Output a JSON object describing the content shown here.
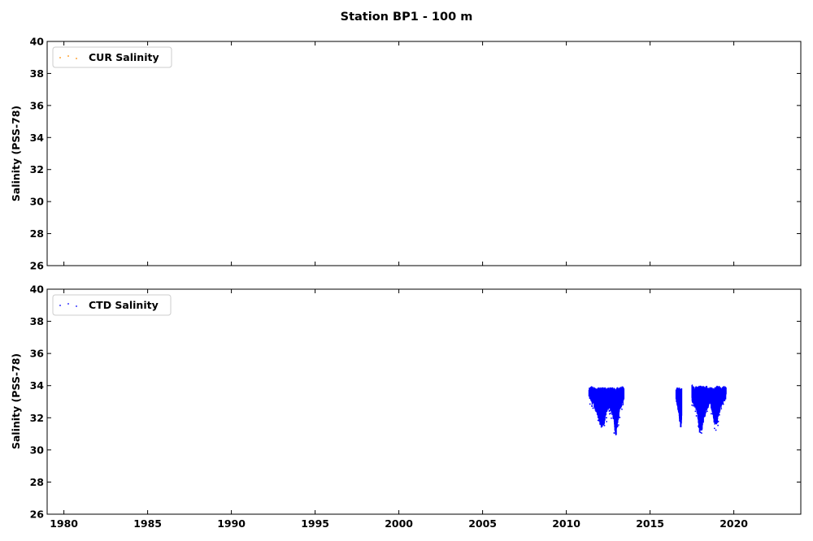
{
  "chart_data": {
    "type": "scatter",
    "title": "Station BP1 - 100 m",
    "xlim": [
      1979,
      2024
    ],
    "xticks": [
      1980,
      1985,
      1990,
      1995,
      2000,
      2005,
      2010,
      2015,
      2020
    ],
    "panels": [
      {
        "ylabel": "Salinity (PSS-78)",
        "ylim": [
          26,
          40
        ],
        "yticks": [
          26,
          28,
          30,
          32,
          34,
          36,
          38,
          40
        ],
        "legend": {
          "label": "CUR Salinity",
          "position": "upper left"
        },
        "color": "#ff8c00",
        "series": [
          {
            "name": "CUR Salinity",
            "points": []
          }
        ]
      },
      {
        "ylabel": "Salinity (PSS-78)",
        "ylim": [
          26,
          40
        ],
        "yticks": [
          26,
          28,
          30,
          32,
          34,
          36,
          38,
          40
        ],
        "legend": {
          "label": "CTD Salinity",
          "position": "upper left"
        },
        "color": "#0000ff",
        "series": [
          {
            "name": "CTD Salinity",
            "segments": [
              {
                "x": [
                  2011.35,
                  2011.5,
                  2011.65,
                  2011.8,
                  2011.95,
                  2012.05,
                  2012.15,
                  2012.25,
                  2012.4,
                  2012.55,
                  2012.7,
                  2012.85,
                  2012.95,
                  2013.05,
                  2013.2,
                  2013.35,
                  2013.45
                ],
                "ymin": [
                  33.2,
                  32.9,
                  32.6,
                  32.3,
                  31.7,
                  31.4,
                  31.3,
                  31.5,
                  32.2,
                  32.6,
                  32.3,
                  31.6,
                  30.7,
                  31.4,
                  32.4,
                  32.7,
                  32.9
                ],
                "ymax": [
                  33.9,
                  34.0,
                  33.9,
                  33.9,
                  33.9,
                  33.9,
                  33.9,
                  33.9,
                  33.9,
                  33.9,
                  33.9,
                  33.9,
                  33.8,
                  33.9,
                  33.9,
                  34.0,
                  33.9
                ]
              },
              {
                "x": [
                  2016.55,
                  2016.65,
                  2016.75,
                  2016.85,
                  2016.9
                ],
                "ymin": [
                  33.0,
                  32.6,
                  31.8,
                  31.2,
                  32.3
                ],
                "ymax": [
                  33.9,
                  33.9,
                  33.9,
                  33.8,
                  33.9
                ]
              },
              {
                "x": [
                  2017.5,
                  2017.65,
                  2017.8,
                  2017.95,
                  2018.1,
                  2018.25,
                  2018.4,
                  2018.55,
                  2018.7,
                  2018.85,
                  2019.0,
                  2019.15,
                  2019.3,
                  2019.45,
                  2019.55
                ],
                "ymin": [
                  32.9,
                  32.7,
                  32.3,
                  31.0,
                  31.2,
                  32.0,
                  32.4,
                  32.8,
                  32.4,
                  31.4,
                  31.6,
                  32.3,
                  32.8,
                  33.0,
                  33.1
                ],
                "ymax": [
                  34.1,
                  33.9,
                  34.0,
                  34.0,
                  34.0,
                  34.0,
                  34.0,
                  33.9,
                  33.9,
                  33.9,
                  34.0,
                  34.0,
                  33.9,
                  34.0,
                  33.9
                ]
              }
            ]
          }
        ]
      }
    ]
  }
}
